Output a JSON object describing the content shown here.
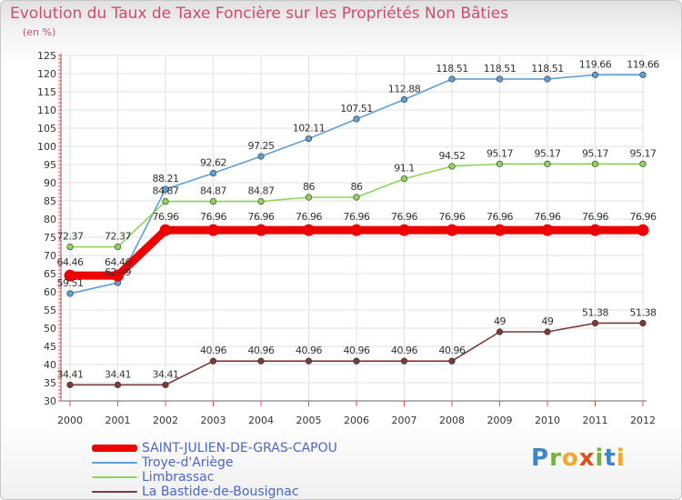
{
  "header": {
    "title": "Evolution du Taux de Taxe Foncière sur les Propriétés Non Bâties",
    "subtitle": "(en %)"
  },
  "logo": {
    "text": "Proxiti",
    "colors": [
      "#3e86c8",
      "#e0501c",
      "#f3a628",
      "#72b23a"
    ]
  },
  "chart_data": {
    "type": "line",
    "x": [
      "2000",
      "2001",
      "2002",
      "2003",
      "2004",
      "2005",
      "2006",
      "2007",
      "2008",
      "2009",
      "2010",
      "2011",
      "2012"
    ],
    "ylim": [
      30,
      125
    ],
    "yticks": [
      "30",
      "35",
      "40",
      "45",
      "50",
      "55",
      "60",
      "65",
      "70",
      "75",
      "80",
      "85",
      "90",
      "95",
      "100",
      "105",
      "110",
      "115",
      "120",
      "125"
    ],
    "grid": true,
    "legend_position": "bottom-left",
    "series": [
      {
        "name": "SAINT-JULIEN-DE-GRAS-CAPOU",
        "color": "#ee0000",
        "values": [
          64.46,
          64.46,
          76.96,
          76.96,
          76.96,
          76.96,
          76.96,
          76.96,
          76.96,
          76.96,
          76.96,
          76.96,
          76.96
        ],
        "labels": [
          "64.46",
          "64.46",
          "76.96",
          "76.96",
          "76.96",
          "76.96",
          "76.96",
          "76.96",
          "76.96",
          "76.96",
          "76.96",
          "76.96",
          "76.96"
        ]
      },
      {
        "name": "Troye-d'Ariège",
        "color": "#5e9fd6",
        "values": [
          59.51,
          62.49,
          88.21,
          92.62,
          97.25,
          102.11,
          107.51,
          112.88,
          118.51,
          118.51,
          118.51,
          119.66,
          119.66
        ],
        "labels": [
          "59.51",
          "62.49",
          "88.21",
          "92.62",
          "97.25",
          "102.11",
          "107.51",
          "112.88",
          "118.51",
          "118.51",
          "118.51",
          "119.66",
          "119.66"
        ]
      },
      {
        "name": "Limbrassac",
        "color": "#8fd45a",
        "values": [
          72.37,
          72.37,
          84.87,
          84.87,
          84.87,
          86,
          86,
          91.1,
          94.52,
          95.17,
          95.17,
          95.17,
          95.17
        ],
        "labels": [
          "72.37",
          "72.37",
          "84.87",
          "84.87",
          "84.87",
          "86",
          "86",
          "91.1",
          "94.52",
          "95.17",
          "95.17",
          "95.17",
          "95.17"
        ]
      },
      {
        "name": "La Bastide-de-Bousignac",
        "color": "#7a3a3a",
        "values": [
          34.41,
          34.41,
          34.41,
          40.96,
          40.96,
          40.96,
          40.96,
          40.96,
          40.96,
          49,
          49,
          51.38,
          51.38
        ],
        "labels": [
          "34.41",
          "34.41",
          "34.41",
          "40.96",
          "40.96",
          "40.96",
          "40.96",
          "40.96",
          "40.96",
          "49",
          "49",
          "51.38",
          "51.38"
        ]
      }
    ]
  }
}
